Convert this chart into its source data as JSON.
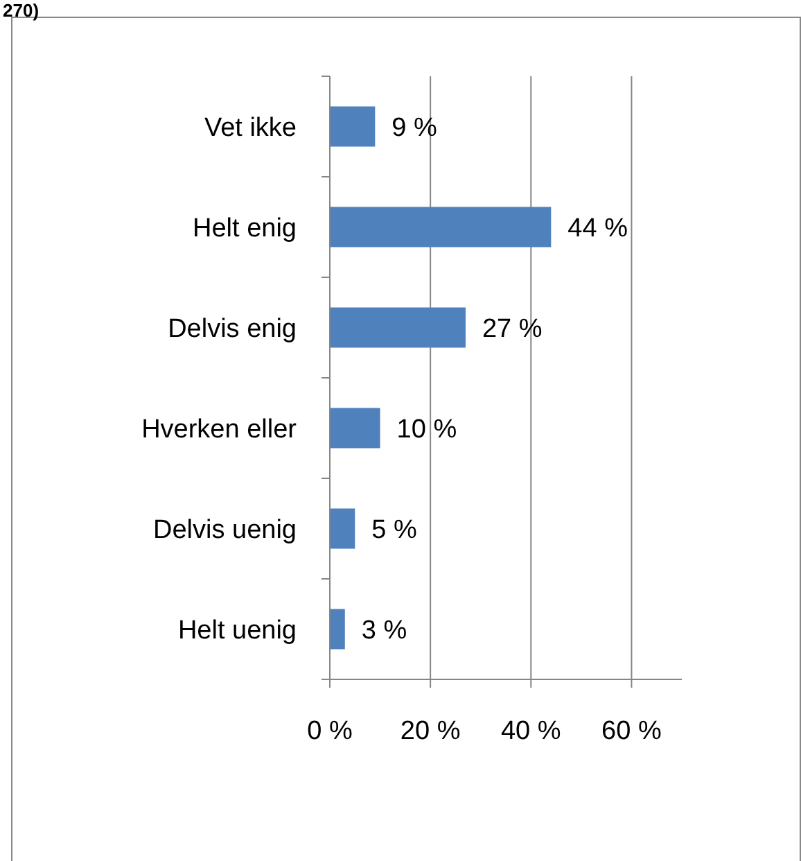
{
  "chart_data": {
    "type": "bar",
    "orientation": "horizontal",
    "categories": [
      "Vet ikke",
      "Helt enig",
      "Delvis enig",
      "Hverken eller",
      "Delvis uenig",
      "Helt uenig"
    ],
    "values": [
      9,
      44,
      27,
      10,
      5,
      3
    ],
    "value_labels": [
      "9 %",
      "44 %",
      "27 %",
      "10 %",
      "5 %",
      "3 %"
    ],
    "color": "#4f81bd",
    "xlim": [
      0,
      70
    ],
    "xticks": [
      {
        "value": 0,
        "label": "0 %"
      },
      {
        "value": 20,
        "label": "20 %"
      },
      {
        "value": 40,
        "label": "40 %"
      },
      {
        "value": 60,
        "label": "60 %"
      }
    ],
    "grid": "x",
    "annotations": [
      "270)"
    ]
  }
}
